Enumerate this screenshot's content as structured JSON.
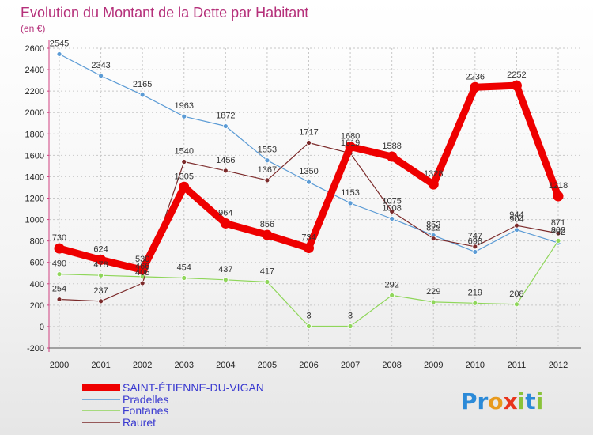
{
  "chart_data": {
    "type": "line",
    "title": "Evolution du Montant de la Dette par Habitant",
    "subtitle": "(en €)",
    "x": [
      "2000",
      "2001",
      "2002",
      "2003",
      "2004",
      "2005",
      "2006",
      "2007",
      "2008",
      "2009",
      "2010",
      "2011",
      "2012"
    ],
    "ylim": [
      -200,
      2600
    ],
    "yticks": [
      -200,
      0,
      200,
      400,
      600,
      800,
      1000,
      1200,
      1400,
      1600,
      1800,
      2000,
      2200,
      2400,
      2600
    ],
    "grid": true,
    "legend_position": "bottom-left",
    "series": [
      {
        "name": "SAINT-ÉTIENNE-DU-VIGAN",
        "color": "#ee0000",
        "values": [
          730,
          624,
          530,
          1305,
          964,
          856,
          734,
          1680,
          1588,
          1328,
          2236,
          2252,
          1218
        ]
      },
      {
        "name": "Pradelles",
        "color": "#5b9bd5",
        "values": [
          2545,
          2343,
          2165,
          1963,
          1872,
          1553,
          1350,
          1153,
          1008,
          852,
          698,
          904,
          782
        ]
      },
      {
        "name": "Fontanes",
        "color": "#8fd65a",
        "values": [
          490,
          478,
          466,
          454,
          437,
          417,
          3,
          3,
          292,
          229,
          219,
          208,
          802
        ]
      },
      {
        "name": "Rauret",
        "color": "#7b2a2a",
        "values": [
          254,
          237,
          406,
          1540,
          1456,
          1367,
          1717,
          1619,
          1075,
          822,
          747,
          944,
          871
        ]
      }
    ]
  },
  "logo_text": "Proxiti"
}
